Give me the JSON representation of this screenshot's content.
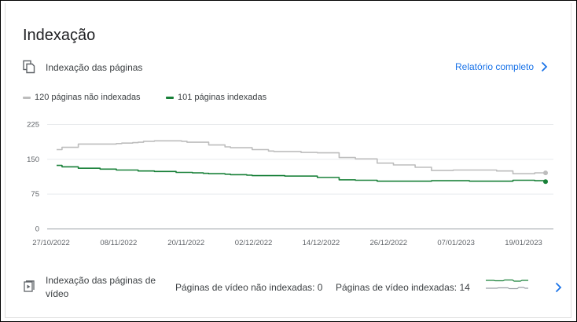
{
  "card": {
    "title": "Indexação",
    "section_label": "Indexação das páginas",
    "report_link": "Relatório completo"
  },
  "legend": [
    {
      "label": "120 páginas não indexadas",
      "color": "#bdbdbd"
    },
    {
      "label": "101 páginas indexadas",
      "color": "#188038"
    }
  ],
  "chart_data": {
    "type": "line",
    "ylim": [
      0,
      225
    ],
    "y_ticks": [
      "225",
      "150",
      "75",
      "0"
    ],
    "y_tick_values": [
      225,
      150,
      75,
      0
    ],
    "x_tick_labels": [
      "27/10/2022",
      "08/11/2022",
      "20/11/2022",
      "02/12/2022",
      "14/12/2022",
      "26/12/2022",
      "07/01/2023",
      "19/01/2023"
    ],
    "series": [
      {
        "name": "120 páginas não indexadas",
        "color": "#bdbdbd",
        "values": [
          170,
          175,
          175,
          175,
          182,
          182,
          182,
          182,
          182,
          182,
          182,
          183,
          184,
          184,
          185,
          186,
          188,
          188,
          189,
          189,
          189,
          189,
          189,
          188,
          186,
          186,
          186,
          186,
          180,
          180,
          180,
          176,
          174,
          174,
          174,
          174,
          170,
          170,
          170,
          167,
          166,
          166,
          166,
          166,
          166,
          164,
          164,
          164,
          163,
          163,
          163,
          163,
          153,
          153,
          153,
          150,
          150,
          150,
          150,
          141,
          141,
          141,
          137,
          137,
          137,
          137,
          132,
          132,
          132,
          125,
          125,
          125,
          125,
          126,
          126,
          126,
          126,
          126,
          126,
          126,
          126,
          124,
          124,
          124,
          118,
          118,
          118,
          118,
          120,
          120,
          120
        ]
      },
      {
        "name": "101 páginas indexadas",
        "color": "#188038",
        "values": [
          136,
          133,
          133,
          133,
          130,
          130,
          130,
          130,
          128,
          128,
          128,
          126,
          126,
          126,
          126,
          124,
          124,
          124,
          123,
          123,
          123,
          123,
          121,
          121,
          121,
          120,
          120,
          119,
          118,
          118,
          118,
          117,
          116,
          116,
          116,
          115,
          114,
          114,
          114,
          114,
          114,
          114,
          113,
          113,
          113,
          113,
          113,
          113,
          110,
          110,
          110,
          110,
          105,
          105,
          105,
          104,
          104,
          104,
          104,
          102,
          102,
          102,
          102,
          102,
          102,
          102,
          102,
          102,
          102,
          103,
          103,
          103,
          103,
          103,
          103,
          103,
          102,
          102,
          102,
          102,
          102,
          102,
          102,
          102,
          104,
          104,
          104,
          104,
          103,
          103,
          101
        ]
      }
    ]
  },
  "video": {
    "label": "Indexação das páginas de vídeo",
    "not_indexed": "Páginas de vídeo não indexadas: 0",
    "indexed": "Páginas de vídeo indexadas: 14"
  }
}
